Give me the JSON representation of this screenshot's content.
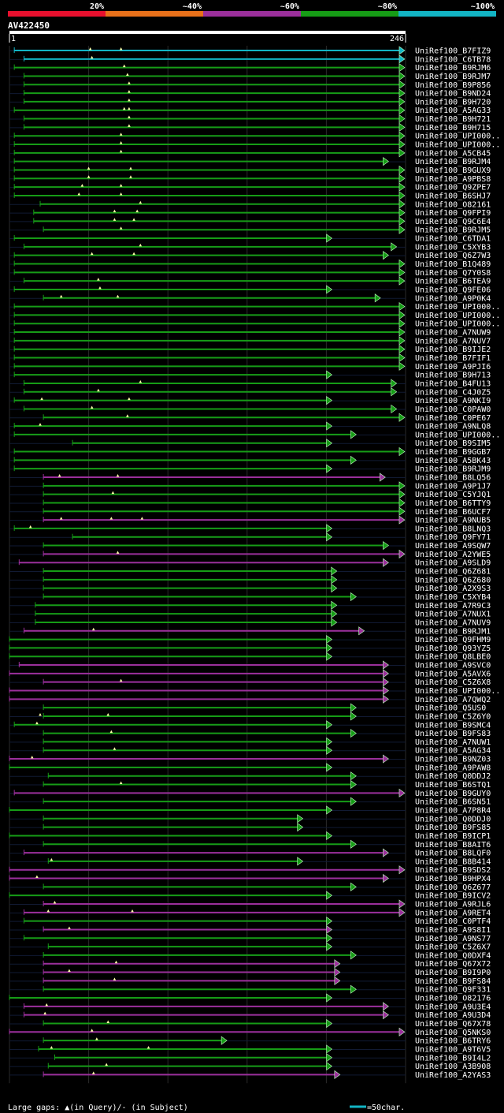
{
  "chart_data": {
    "type": "alignment-overview",
    "query": {
      "name": "AV422450",
      "length": 246,
      "start_label": "1",
      "end_label": "246"
    },
    "identity_legend": [
      {
        "label": "20%",
        "color": "#e8102e"
      },
      {
        "label": "~40%",
        "color": "#e8701a"
      },
      {
        "label": "~60%",
        "color": "#9b2f9b"
      },
      {
        "label": "~80%",
        "color": "#169c16"
      },
      {
        "label": "~100%",
        "color": "#12b4c4"
      }
    ],
    "footer": {
      "gaps_text": "Large gaps: ▲(in Query)/- (in Subject)",
      "scale_text": "=50char."
    },
    "series": [
      {
        "label": "UniRef100_B7FIZ9",
        "start": 4,
        "end": 245,
        "identity": "~100%",
        "gaps": [
          51,
          70
        ]
      },
      {
        "label": "UniRef100_C6TB78",
        "start": 10,
        "end": 245,
        "identity": "~100%",
        "gaps": [
          52
        ]
      },
      {
        "label": "UniRef100_B9RJM6",
        "start": 4,
        "end": 245,
        "identity": "~80%",
        "gaps": [
          72
        ]
      },
      {
        "label": "UniRef100_B9RJM7",
        "start": 10,
        "end": 245,
        "identity": "~80%",
        "gaps": [
          74
        ]
      },
      {
        "label": "UniRef100_B9P856",
        "start": 10,
        "end": 245,
        "identity": "~80%",
        "gaps": [
          75
        ]
      },
      {
        "label": "UniRef100_B9ND24",
        "start": 10,
        "end": 245,
        "identity": "~80%",
        "gaps": [
          75
        ]
      },
      {
        "label": "UniRef100_B9H720",
        "start": 10,
        "end": 245,
        "identity": "~80%",
        "gaps": [
          75
        ]
      },
      {
        "label": "UniRef100_A5AG33",
        "start": 4,
        "end": 245,
        "identity": "~80%",
        "gaps": [
          72,
          75
        ]
      },
      {
        "label": "UniRef100_B9H721",
        "start": 10,
        "end": 245,
        "identity": "~80%",
        "gaps": [
          75
        ]
      },
      {
        "label": "UniRef100_B9H715",
        "start": 10,
        "end": 245,
        "identity": "~80%",
        "gaps": [
          75
        ]
      },
      {
        "label": "UniRef100_UPI000..",
        "start": 4,
        "end": 245,
        "identity": "~80%",
        "gaps": [
          70
        ]
      },
      {
        "label": "UniRef100_UPI000..",
        "start": 4,
        "end": 245,
        "identity": "~80%",
        "gaps": [
          70
        ]
      },
      {
        "label": "UniRef100_A5CB45",
        "start": 4,
        "end": 245,
        "identity": "~80%",
        "gaps": [
          70
        ]
      },
      {
        "label": "UniRef100_B9RJM4",
        "start": 4,
        "end": 235,
        "identity": "~80%",
        "gaps": []
      },
      {
        "label": "UniRef100_B9GUX9",
        "start": 4,
        "end": 245,
        "identity": "~80%",
        "gaps": [
          50,
          76
        ]
      },
      {
        "label": "UniRef100_A9PBS8",
        "start": 4,
        "end": 245,
        "identity": "~80%",
        "gaps": [
          50,
          76
        ]
      },
      {
        "label": "UniRef100_Q9ZPE7",
        "start": 4,
        "end": 245,
        "identity": "~80%",
        "gaps": [
          46,
          70
        ]
      },
      {
        "label": "UniRef100_B6SHJ7",
        "start": 4,
        "end": 245,
        "identity": "~80%",
        "gaps": [
          44,
          70
        ]
      },
      {
        "label": "UniRef100_O82161",
        "start": 20,
        "end": 245,
        "identity": "~80%",
        "gaps": [
          82
        ]
      },
      {
        "label": "UniRef100_Q9FPI9",
        "start": 16,
        "end": 245,
        "identity": "~80%",
        "gaps": [
          66,
          80
        ]
      },
      {
        "label": "UniRef100_Q9C6E4",
        "start": 16,
        "end": 245,
        "identity": "~80%",
        "gaps": [
          66,
          78
        ]
      },
      {
        "label": "UniRef100_B9RJM5",
        "start": 22,
        "end": 245,
        "identity": "~80%",
        "gaps": [
          70
        ]
      },
      {
        "label": "UniRef100_C6TDA1",
        "start": 4,
        "end": 200,
        "identity": "~80%",
        "gaps": []
      },
      {
        "label": "UniRef100_C5XYB3",
        "start": 10,
        "end": 240,
        "identity": "~80%",
        "gaps": [
          82
        ]
      },
      {
        "label": "UniRef100_Q6Z7W3",
        "start": 4,
        "end": 235,
        "identity": "~80%",
        "gaps": [
          52,
          78
        ]
      },
      {
        "label": "UniRef100_B1Q489",
        "start": 4,
        "end": 245,
        "identity": "~80%",
        "gaps": []
      },
      {
        "label": "UniRef100_Q7Y0S8",
        "start": 4,
        "end": 245,
        "identity": "~80%",
        "gaps": []
      },
      {
        "label": "UniRef100_B6TEA9",
        "start": 10,
        "end": 245,
        "identity": "~80%",
        "gaps": [
          56
        ]
      },
      {
        "label": "UniRef100_Q9FE06",
        "start": 4,
        "end": 200,
        "identity": "~80%",
        "gaps": [
          57
        ]
      },
      {
        "label": "UniRef100_A9P0K4",
        "start": 22,
        "end": 230,
        "identity": "~80%",
        "gaps": [
          33,
          68
        ]
      },
      {
        "label": "UniRef100_UPI000..",
        "start": 4,
        "end": 245,
        "identity": "~80%",
        "gaps": []
      },
      {
        "label": "UniRef100_UPI000..",
        "start": 4,
        "end": 245,
        "identity": "~80%",
        "gaps": []
      },
      {
        "label": "UniRef100_UPI000..",
        "start": 4,
        "end": 245,
        "identity": "~80%",
        "gaps": []
      },
      {
        "label": "UniRef100_A7NUW9",
        "start": 4,
        "end": 245,
        "identity": "~80%",
        "gaps": []
      },
      {
        "label": "UniRef100_A7NUV7",
        "start": 4,
        "end": 245,
        "identity": "~80%",
        "gaps": []
      },
      {
        "label": "UniRef100_B9IJE2",
        "start": 4,
        "end": 245,
        "identity": "~80%",
        "gaps": []
      },
      {
        "label": "UniRef100_B7FIF1",
        "start": 4,
        "end": 245,
        "identity": "~80%",
        "gaps": []
      },
      {
        "label": "UniRef100_A9PJI6",
        "start": 4,
        "end": 245,
        "identity": "~80%",
        "gaps": []
      },
      {
        "label": "UniRef100_B9H713",
        "start": 4,
        "end": 200,
        "identity": "~80%",
        "gaps": []
      },
      {
        "label": "UniRef100_B4FU13",
        "start": 10,
        "end": 240,
        "identity": "~80%",
        "gaps": [
          82
        ]
      },
      {
        "label": "UniRef100_C4J0Z5",
        "start": 10,
        "end": 240,
        "identity": "~80%",
        "gaps": [
          56
        ]
      },
      {
        "label": "UniRef100_A9NKI9",
        "start": 4,
        "end": 200,
        "identity": "~80%",
        "gaps": [
          21,
          75
        ]
      },
      {
        "label": "UniRef100_C0PAW0",
        "start": 10,
        "end": 240,
        "identity": "~80%",
        "gaps": [
          52
        ]
      },
      {
        "label": "UniRef100_C0PE67",
        "start": 22,
        "end": 245,
        "identity": "~80%",
        "gaps": [
          74
        ]
      },
      {
        "label": "UniRef100_A9NLQ8",
        "start": 4,
        "end": 200,
        "identity": "~80%",
        "gaps": [
          20
        ]
      },
      {
        "label": "UniRef100_UPI000..",
        "start": 4,
        "end": 215,
        "identity": "~80%",
        "gaps": []
      },
      {
        "label": "UniRef100_B9SIM5",
        "start": 40,
        "end": 200,
        "identity": "~80%",
        "gaps": []
      },
      {
        "label": "UniRef100_B9GGB7",
        "start": 4,
        "end": 245,
        "identity": "~80%",
        "gaps": []
      },
      {
        "label": "UniRef100_A5BK43",
        "start": 4,
        "end": 215,
        "identity": "~80%",
        "gaps": []
      },
      {
        "label": "UniRef100_B9RJM9",
        "start": 4,
        "end": 200,
        "identity": "~80%",
        "gaps": []
      },
      {
        "label": "UniRef100_B8LQ56",
        "start": 22,
        "end": 233,
        "identity": "~60%",
        "gaps": [
          32,
          68
        ]
      },
      {
        "label": "UniRef100_A9P1J7",
        "start": 22,
        "end": 245,
        "identity": "~80%",
        "gaps": []
      },
      {
        "label": "UniRef100_C5YJQ1",
        "start": 22,
        "end": 245,
        "identity": "~80%",
        "gaps": [
          65
        ]
      },
      {
        "label": "UniRef100_B6TTY9",
        "start": 22,
        "end": 245,
        "identity": "~80%",
        "gaps": []
      },
      {
        "label": "UniRef100_B6UCF7",
        "start": 22,
        "end": 245,
        "identity": "~80%",
        "gaps": []
      },
      {
        "label": "UniRef100_A9NUB5",
        "start": 22,
        "end": 245,
        "identity": "~60%",
        "gaps": [
          33,
          64,
          83
        ]
      },
      {
        "label": "UniRef100_B8LNQ3",
        "start": 4,
        "end": 200,
        "identity": "~80%",
        "gaps": [
          14
        ]
      },
      {
        "label": "UniRef100_Q9FY71",
        "start": 40,
        "end": 200,
        "identity": "~80%",
        "gaps": []
      },
      {
        "label": "UniRef100_A9SQW7",
        "start": 22,
        "end": 235,
        "identity": "~80%",
        "gaps": []
      },
      {
        "label": "UniRef100_A2YWE5",
        "start": 22,
        "end": 245,
        "identity": "~60%",
        "gaps": [
          68
        ]
      },
      {
        "label": "UniRef100_A9SLD9",
        "start": 7,
        "end": 235,
        "identity": "~60%",
        "gaps": []
      },
      {
        "label": "UniRef100_Q6Z681",
        "start": 22,
        "end": 203,
        "identity": "~80%",
        "gaps": []
      },
      {
        "label": "UniRef100_Q6Z680",
        "start": 22,
        "end": 203,
        "identity": "~80%",
        "gaps": []
      },
      {
        "label": "UniRef100_A2X9S3",
        "start": 22,
        "end": 203,
        "identity": "~80%",
        "gaps": []
      },
      {
        "label": "UniRef100_C5XYB4",
        "start": 22,
        "end": 215,
        "identity": "~80%",
        "gaps": []
      },
      {
        "label": "UniRef100_A7R9C3",
        "start": 17,
        "end": 203,
        "identity": "~80%",
        "gaps": []
      },
      {
        "label": "UniRef100_A7NUX1",
        "start": 17,
        "end": 203,
        "identity": "~80%",
        "gaps": []
      },
      {
        "label": "UniRef100_A7NUV9",
        "start": 17,
        "end": 203,
        "identity": "~80%",
        "gaps": []
      },
      {
        "label": "UniRef100_B9RJM1",
        "start": 10,
        "end": 220,
        "identity": "~60%",
        "gaps": [
          53
        ]
      },
      {
        "label": "UniRef100_Q9FHM9",
        "start": 1,
        "end": 200,
        "identity": "~80%",
        "gaps": []
      },
      {
        "label": "UniRef100_Q93YZ5",
        "start": 1,
        "end": 200,
        "identity": "~80%",
        "gaps": []
      },
      {
        "label": "UniRef100_Q8LBE0",
        "start": 1,
        "end": 200,
        "identity": "~80%",
        "gaps": []
      },
      {
        "label": "UniRef100_A9SVC0",
        "start": 7,
        "end": 235,
        "identity": "~60%",
        "gaps": []
      },
      {
        "label": "UniRef100_A5AVX6",
        "start": 1,
        "end": 235,
        "identity": "~60%",
        "gaps": []
      },
      {
        "label": "UniRef100_C5Z6X8",
        "start": 22,
        "end": 235,
        "identity": "~60%",
        "gaps": [
          70
        ]
      },
      {
        "label": "UniRef100_UPI000..",
        "start": 1,
        "end": 235,
        "identity": "~60%",
        "gaps": []
      },
      {
        "label": "UniRef100_A7QWQ2",
        "start": 1,
        "end": 235,
        "identity": "~60%",
        "gaps": []
      },
      {
        "label": "UniRef100_Q5US0",
        "start": 22,
        "end": 215,
        "identity": "~80%",
        "gaps": []
      },
      {
        "label": "UniRef100_C5Z6Y0",
        "start": 22,
        "end": 215,
        "identity": "~80%",
        "gaps": [
          20,
          62
        ]
      },
      {
        "label": "UniRef100_B9SMC4",
        "start": 4,
        "end": 200,
        "identity": "~80%",
        "gaps": [
          18
        ]
      },
      {
        "label": "UniRef100_B9FS83",
        "start": 22,
        "end": 215,
        "identity": "~80%",
        "gaps": [
          64
        ]
      },
      {
        "label": "UniRef100_A7NUW1",
        "start": 22,
        "end": 200,
        "identity": "~80%",
        "gaps": []
      },
      {
        "label": "UniRef100_A5AG34",
        "start": 22,
        "end": 200,
        "identity": "~80%",
        "gaps": [
          66
        ]
      },
      {
        "label": "UniRef100_B9NZ03",
        "start": 1,
        "end": 235,
        "identity": "~60%",
        "gaps": [
          15
        ]
      },
      {
        "label": "UniRef100_A9PAW8",
        "start": 1,
        "end": 200,
        "identity": "~80%",
        "gaps": []
      },
      {
        "label": "UniRef100_Q0DDJ2",
        "start": 25,
        "end": 215,
        "identity": "~80%",
        "gaps": []
      },
      {
        "label": "UniRef100_B6STQ1",
        "start": 22,
        "end": 215,
        "identity": "~80%",
        "gaps": [
          70
        ]
      },
      {
        "label": "UniRef100_B9GUY0",
        "start": 4,
        "end": 245,
        "identity": "~60%",
        "gaps": []
      },
      {
        "label": "UniRef100_B6SN51",
        "start": 22,
        "end": 215,
        "identity": "~80%",
        "gaps": []
      },
      {
        "label": "UniRef100_A7P8R4",
        "start": 1,
        "end": 200,
        "identity": "~80%",
        "gaps": []
      },
      {
        "label": "UniRef100_Q0DDJ0",
        "start": 22,
        "end": 182,
        "identity": "~80%",
        "gaps": []
      },
      {
        "label": "UniRef100_B9FS85",
        "start": 22,
        "end": 182,
        "identity": "~80%",
        "gaps": []
      },
      {
        "label": "UniRef100_B9ICP1",
        "start": 1,
        "end": 200,
        "identity": "~80%",
        "gaps": []
      },
      {
        "label": "UniRef100_B8AIT6",
        "start": 22,
        "end": 215,
        "identity": "~80%",
        "gaps": []
      },
      {
        "label": "UniRef100_B8LQF0",
        "start": 10,
        "end": 235,
        "identity": "~60%",
        "gaps": []
      },
      {
        "label": "UniRef100_B8B414",
        "start": 25,
        "end": 182,
        "identity": "~80%",
        "gaps": [
          27
        ]
      },
      {
        "label": "UniRef100_B9SDS2",
        "start": 1,
        "end": 245,
        "identity": "~60%",
        "gaps": []
      },
      {
        "label": "UniRef100_B9HPX4",
        "start": 1,
        "end": 235,
        "identity": "~60%",
        "gaps": [
          18
        ]
      },
      {
        "label": "UniRef100_Q6Z677",
        "start": 22,
        "end": 215,
        "identity": "~80%",
        "gaps": []
      },
      {
        "label": "UniRef100_B9ICV2",
        "start": 1,
        "end": 200,
        "identity": "~80%",
        "gaps": []
      },
      {
        "label": "UniRef100_A9RJL6",
        "start": 22,
        "end": 245,
        "identity": "~60%",
        "gaps": [
          29
        ]
      },
      {
        "label": "UniRef100_A9RET4",
        "start": 10,
        "end": 245,
        "identity": "~60%",
        "gaps": [
          25,
          77
        ]
      },
      {
        "label": "UniRef100_C0PTF4",
        "start": 10,
        "end": 200,
        "identity": "~80%",
        "gaps": []
      },
      {
        "label": "UniRef100_A9S8I1",
        "start": 22,
        "end": 200,
        "identity": "~60%",
        "gaps": [
          38
        ]
      },
      {
        "label": "UniRef100_A9NS77",
        "start": 10,
        "end": 200,
        "identity": "~80%",
        "gaps": []
      },
      {
        "label": "UniRef100_C5Z6X7",
        "start": 25,
        "end": 200,
        "identity": "~80%",
        "gaps": []
      },
      {
        "label": "UniRef100_Q0DXF4",
        "start": 22,
        "end": 215,
        "identity": "~80%",
        "gaps": []
      },
      {
        "label": "UniRef100_Q67X72",
        "start": 22,
        "end": 205,
        "identity": "~60%",
        "gaps": [
          67
        ]
      },
      {
        "label": "UniRef100_B9I9P0",
        "start": 22,
        "end": 205,
        "identity": "~60%",
        "gaps": [
          38
        ]
      },
      {
        "label": "UniRef100_B9FS84",
        "start": 22,
        "end": 205,
        "identity": "~60%",
        "gaps": [
          66
        ]
      },
      {
        "label": "UniRef100_Q9F331",
        "start": 22,
        "end": 215,
        "identity": "~80%",
        "gaps": []
      },
      {
        "label": "UniRef100_O82176",
        "start": 1,
        "end": 200,
        "identity": "~80%",
        "gaps": []
      },
      {
        "label": "UniRef100_A9U3E4",
        "start": 10,
        "end": 235,
        "identity": "~60%",
        "gaps": [
          24
        ]
      },
      {
        "label": "UniRef100_A9U3D4",
        "start": 10,
        "end": 235,
        "identity": "~60%",
        "gaps": [
          23
        ]
      },
      {
        "label": "UniRef100_Q67X78",
        "start": 22,
        "end": 200,
        "identity": "~80%",
        "gaps": [
          62
        ]
      },
      {
        "label": "UniRef100_Q5NKS0",
        "start": 1,
        "end": 245,
        "identity": "~60%",
        "gaps": [
          52
        ]
      },
      {
        "label": "UniRef100_B6TRY6",
        "start": 22,
        "end": 135,
        "identity": "~80%",
        "gaps": [
          55
        ]
      },
      {
        "label": "UniRef100_A9T6V5",
        "start": 19,
        "end": 200,
        "identity": "~80%",
        "gaps": [
          27,
          87
        ]
      },
      {
        "label": "UniRef100_B9I4L2",
        "start": 29,
        "end": 200,
        "identity": "~80%",
        "gaps": []
      },
      {
        "label": "UniRef100_A3B908",
        "start": 25,
        "end": 200,
        "identity": "~80%",
        "gaps": [
          61
        ]
      },
      {
        "label": "UniRef100_A2YAS3",
        "start": 22,
        "end": 205,
        "identity": "~60%",
        "gaps": [
          53
        ]
      }
    ]
  }
}
